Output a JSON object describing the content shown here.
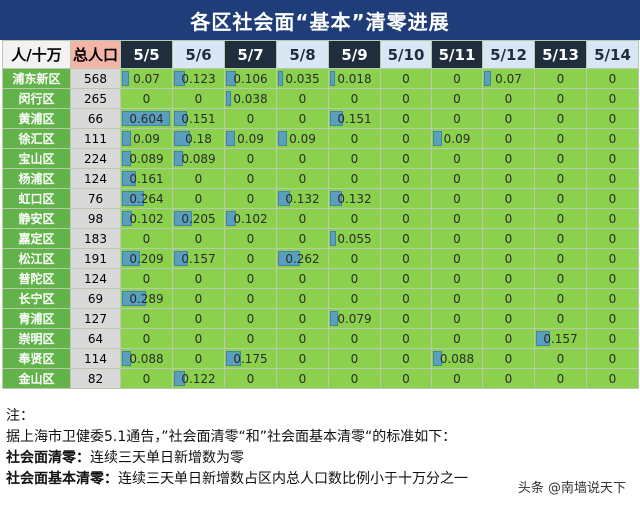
{
  "title": "各区社会面“基本”清零进展",
  "header": {
    "unit": "人/十万",
    "population": "总人口",
    "dates": [
      "5/5",
      "5/6",
      "5/7",
      "5/8",
      "5/9",
      "5/10",
      "5/11",
      "5/12",
      "5/13",
      "5/14"
    ]
  },
  "colors": {
    "title_bg": "#1f3d78",
    "district_bg": "#62b44a",
    "value_bg": "#8bd14e",
    "pop_bg": "#d9d9d9",
    "population_header_bg": "#f4b4a8",
    "bar": "#4a90e2"
  },
  "rows": [
    {
      "district": "浦东新区",
      "population": "568",
      "values": [
        "0.07",
        "0.123",
        "0.106",
        "0.035",
        "0.018",
        "0",
        "0",
        "0.07",
        "0",
        "0"
      ]
    },
    {
      "district": "闵行区",
      "population": "265",
      "values": [
        "0",
        "0",
        "0.038",
        "0",
        "0",
        "0",
        "0",
        "0",
        "0",
        "0"
      ]
    },
    {
      "district": "黄浦区",
      "population": "66",
      "values": [
        "0.604",
        "0.151",
        "0",
        "0",
        "0.151",
        "0",
        "0",
        "0",
        "0",
        "0"
      ]
    },
    {
      "district": "徐汇区",
      "population": "111",
      "values": [
        "0.09",
        "0.18",
        "0.09",
        "0.09",
        "0",
        "0",
        "0.09",
        "0",
        "0",
        "0"
      ]
    },
    {
      "district": "宝山区",
      "population": "224",
      "values": [
        "0.089",
        "0.089",
        "0",
        "0",
        "0",
        "0",
        "0",
        "0",
        "0",
        "0"
      ]
    },
    {
      "district": "杨浦区",
      "population": "124",
      "values": [
        "0.161",
        "0",
        "0",
        "0",
        "0",
        "0",
        "0",
        "0",
        "0",
        "0"
      ]
    },
    {
      "district": "虹口区",
      "population": "76",
      "values": [
        "0.264",
        "0",
        "0",
        "0.132",
        "0.132",
        "0",
        "0",
        "0",
        "0",
        "0"
      ]
    },
    {
      "district": "静安区",
      "population": "98",
      "values": [
        "0.102",
        "0.205",
        "0.102",
        "0",
        "0",
        "0",
        "0",
        "0",
        "0",
        "0"
      ]
    },
    {
      "district": "嘉定区",
      "population": "183",
      "values": [
        "0",
        "0",
        "0",
        "0",
        "0.055",
        "0",
        "0",
        "0",
        "0",
        "0"
      ]
    },
    {
      "district": "松江区",
      "population": "191",
      "values": [
        "0.209",
        "0.157",
        "0",
        "0.262",
        "0",
        "0",
        "0",
        "0",
        "0",
        "0"
      ]
    },
    {
      "district": "普陀区",
      "population": "124",
      "values": [
        "0",
        "0",
        "0",
        "0",
        "0",
        "0",
        "0",
        "0",
        "0",
        "0"
      ]
    },
    {
      "district": "长宁区",
      "population": "69",
      "values": [
        "0.289",
        "0",
        "0",
        "0",
        "0",
        "0",
        "0",
        "0",
        "0",
        "0"
      ]
    },
    {
      "district": "青浦区",
      "population": "127",
      "values": [
        "0",
        "0",
        "0",
        "0",
        "0.079",
        "0",
        "0",
        "0",
        "0",
        "0"
      ]
    },
    {
      "district": "崇明区",
      "population": "64",
      "values": [
        "0",
        "0",
        "0",
        "0",
        "0",
        "0",
        "0",
        "0",
        "0.157",
        "0"
      ]
    },
    {
      "district": "奉贤区",
      "population": "114",
      "values": [
        "0.088",
        "0",
        "0.175",
        "0",
        "0",
        "0",
        "0.088",
        "0",
        "0",
        "0"
      ]
    },
    {
      "district": "金山区",
      "population": "82",
      "values": [
        "0",
        "0.122",
        "0",
        "0",
        "0",
        "0",
        "0",
        "0",
        "0",
        "0"
      ]
    }
  ],
  "notes": {
    "label": "注：",
    "line1": "据上海市卫健委5.1通告，”社会面清零“和”社会面基本清零“的标准如下：",
    "def1_term": "社会面清零：",
    "def1_text": "连续三天单日新增数为零",
    "def2_term": "社会面基本清零：",
    "def2_text": "连续三天单日新增数占区内总人口数比例小于十万分之一"
  },
  "watermark": "头条 @南墙说天下"
}
